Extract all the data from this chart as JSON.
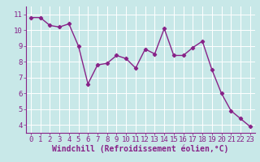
{
  "x": [
    0,
    1,
    2,
    3,
    4,
    5,
    6,
    7,
    8,
    9,
    10,
    11,
    12,
    13,
    14,
    15,
    16,
    17,
    18,
    19,
    20,
    21,
    22,
    23
  ],
  "y": [
    10.8,
    10.8,
    10.3,
    10.2,
    10.4,
    9.0,
    6.6,
    7.8,
    7.9,
    8.4,
    8.2,
    7.6,
    8.8,
    8.5,
    10.1,
    8.4,
    8.4,
    8.9,
    9.3,
    7.5,
    6.0,
    4.9,
    4.4,
    3.9
  ],
  "line_color": "#882288",
  "marker": "D",
  "marker_size": 2.2,
  "xlabel": "Windchill (Refroidissement éolien,°C)",
  "ylim": [
    3.5,
    11.5
  ],
  "xlim": [
    -0.5,
    23.5
  ],
  "yticks": [
    4,
    5,
    6,
    7,
    8,
    9,
    10,
    11
  ],
  "xticks": [
    0,
    1,
    2,
    3,
    4,
    5,
    6,
    7,
    8,
    9,
    10,
    11,
    12,
    13,
    14,
    15,
    16,
    17,
    18,
    19,
    20,
    21,
    22,
    23
  ],
  "bg_color": "#c8e8e8",
  "grid_color": "#aad4d4",
  "tick_label_fontsize": 6.5,
  "xlabel_fontsize": 7,
  "line_width": 1.0
}
